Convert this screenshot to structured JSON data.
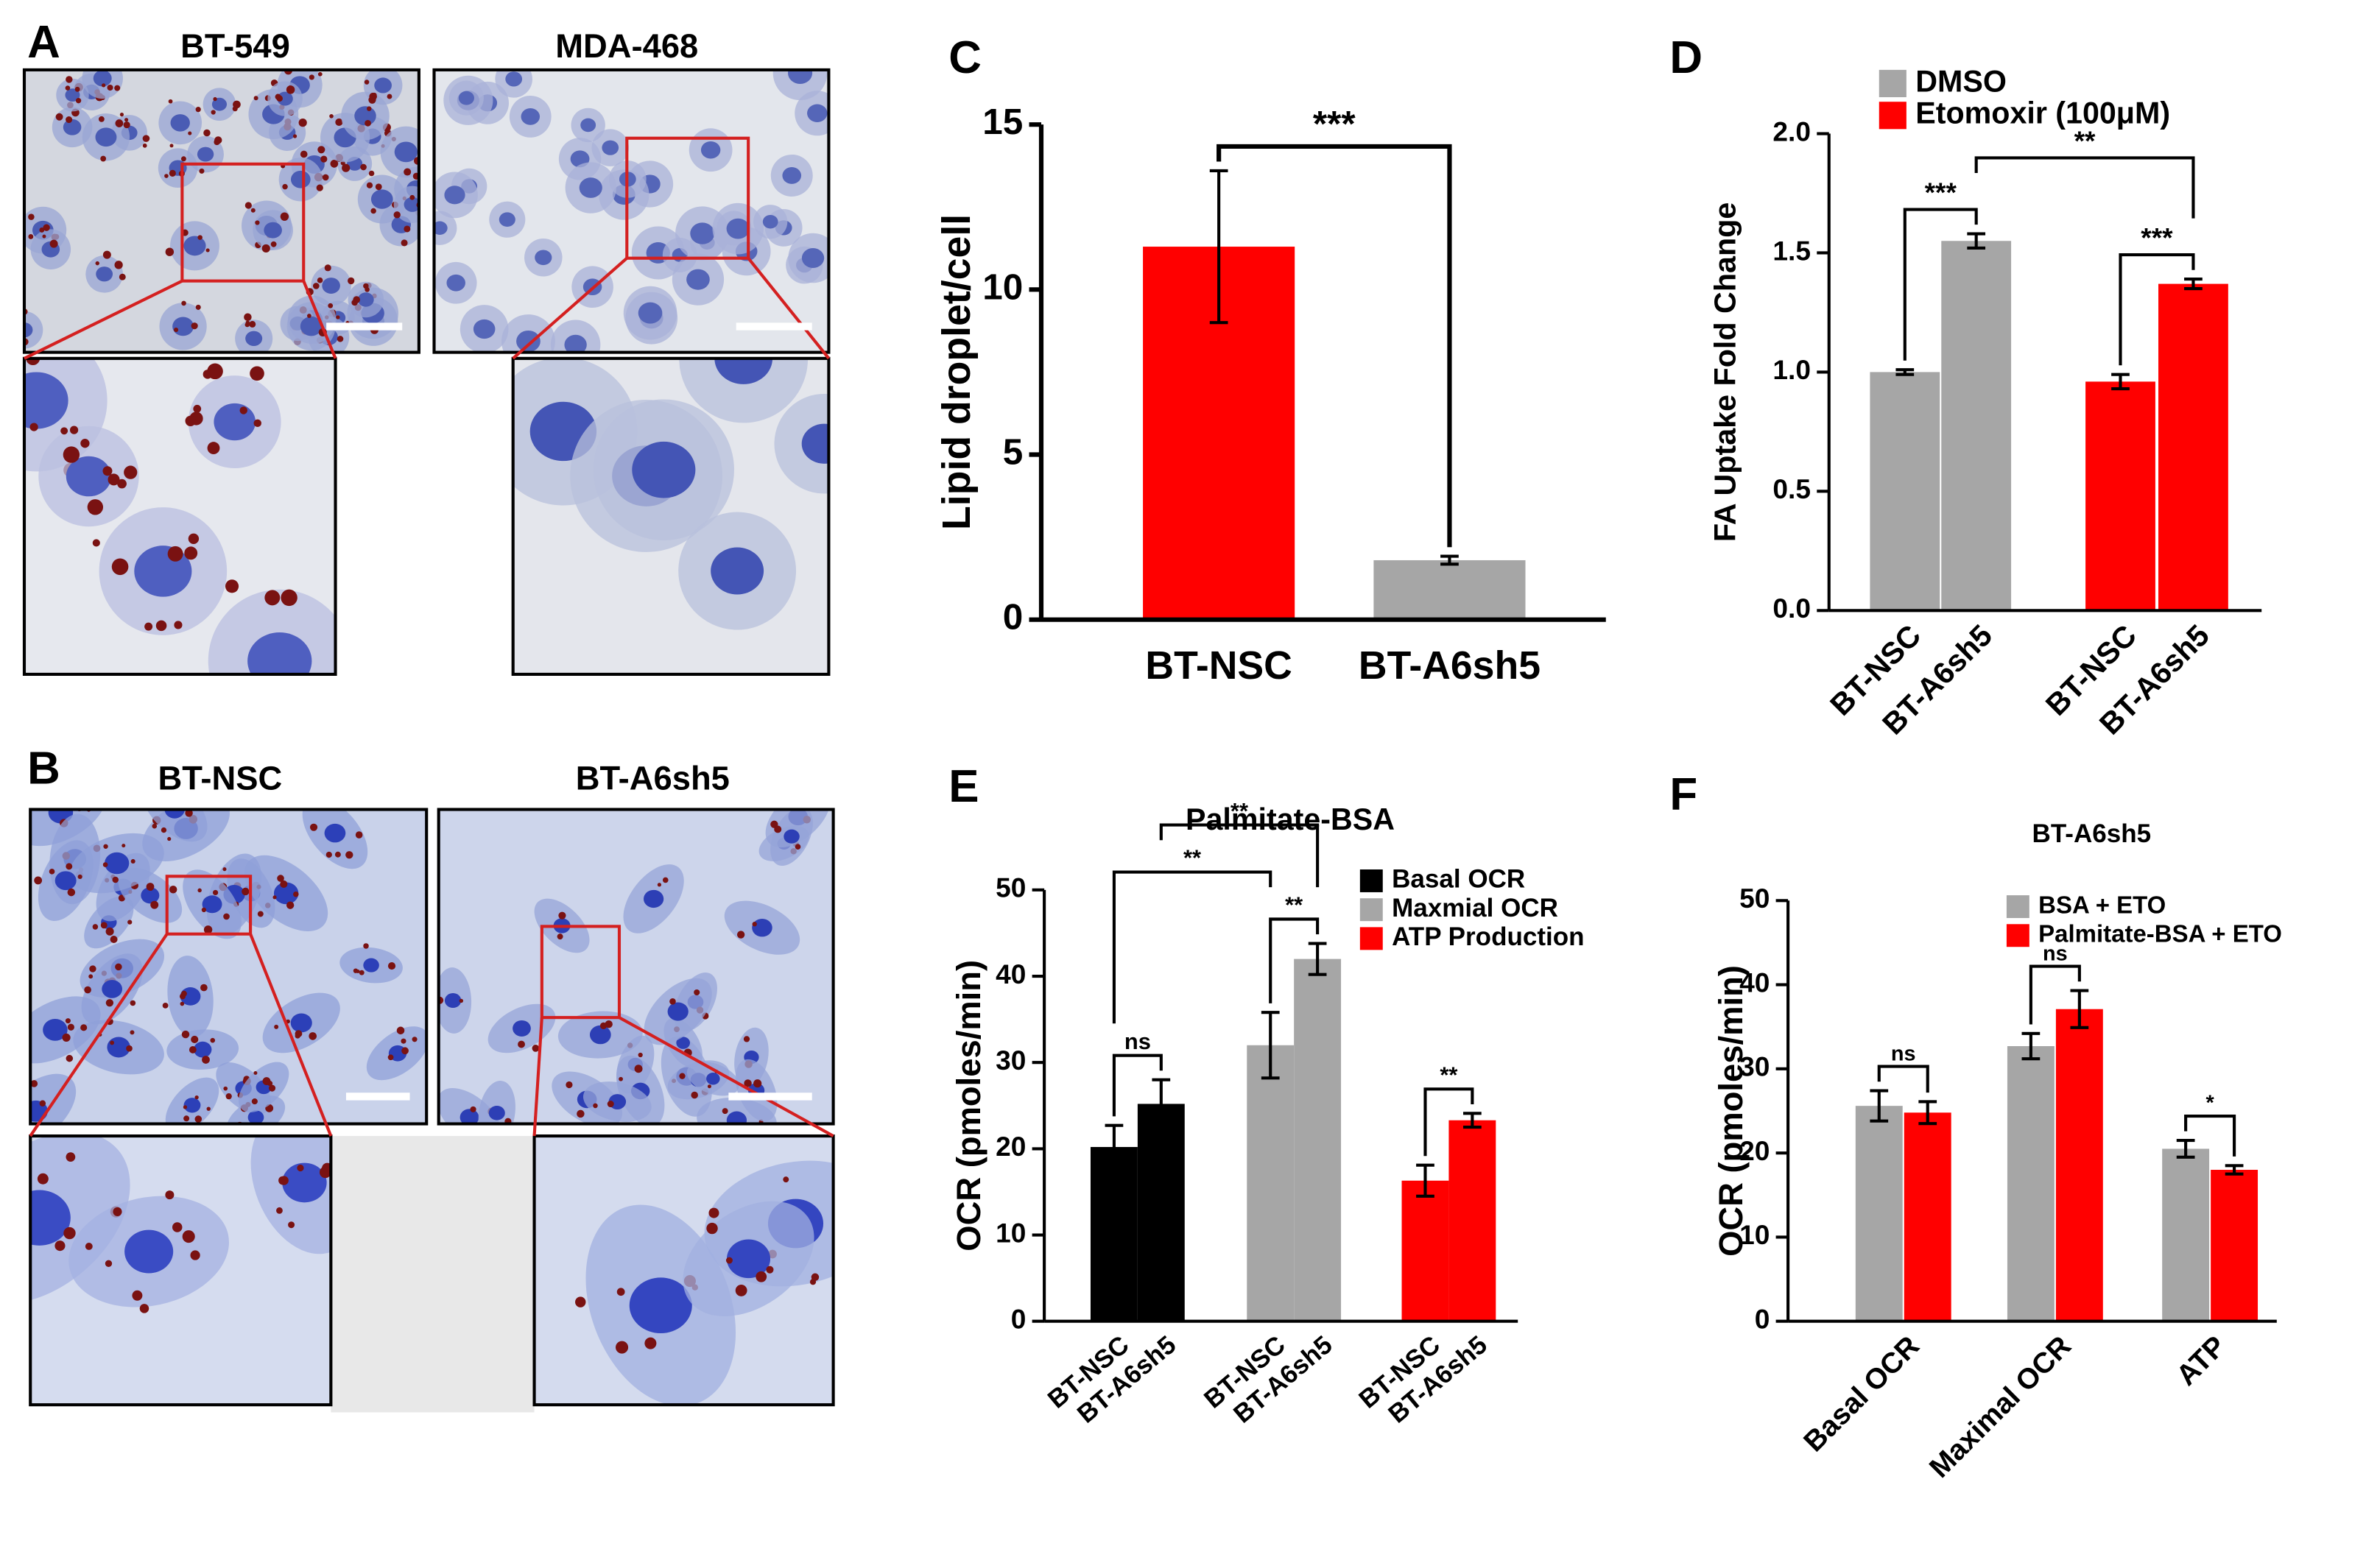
{
  "figure": {
    "panels": [
      {
        "letter": "A",
        "labels": [
          "BT-549",
          "MDA-468"
        ]
      },
      {
        "letter": "B",
        "labels": [
          "BT-NSC",
          "BT-A6sh5"
        ]
      }
    ]
  },
  "chart_data": [
    {
      "type": "bar",
      "panel": "C",
      "ylabel": "Lipid droplet/cell",
      "categories": [
        "BT-NSC",
        "BT-A6sh5"
      ],
      "values": [
        11.3,
        1.8
      ],
      "errors": [
        2.3,
        0.12
      ],
      "colors": [
        "#ff0000",
        "#a6a6a6"
      ],
      "ylim": [
        0,
        15
      ],
      "yticks": [
        0,
        5,
        10,
        15
      ],
      "annotations": [
        {
          "text": "***",
          "bars": [
            0,
            1
          ]
        }
      ]
    },
    {
      "type": "bar",
      "panel": "D",
      "ylabel": "FA Uptake Fold Change",
      "categories": [
        "BT-NSC",
        "BT-A6sh5",
        "BT-NSC",
        "BT-A6sh5"
      ],
      "series": [
        {
          "name": "DMSO",
          "color": "#a6a6a6",
          "values": [
            1.0,
            1.55,
            null,
            null
          ],
          "errors": [
            0.01,
            0.03,
            null,
            null
          ]
        },
        {
          "name": "Etomoxir (100μM)",
          "color": "#ff0000",
          "values": [
            null,
            null,
            0.96,
            1.37
          ],
          "errors": [
            null,
            null,
            0.03,
            0.02
          ]
        }
      ],
      "ylim": [
        0,
        2
      ],
      "yticks": [
        {
          "value": 0,
          "label": "0.0"
        },
        0.5,
        {
          "value": 1,
          "label": "1.0"
        },
        1.5,
        {
          "value": 2,
          "label": "2.0"
        }
      ],
      "annotations": [
        {
          "text": "***",
          "bars": [
            0,
            1
          ]
        },
        {
          "text": "***",
          "bars": [
            2,
            3
          ]
        },
        {
          "text": "**",
          "bars": [
            1,
            3
          ]
        }
      ]
    },
    {
      "type": "bar",
      "panel": "E",
      "title": "Palmitate-BSA",
      "ylabel": "OCR (pmoles/min)",
      "categories": [
        "BT-NSC",
        "BT-A6sh5",
        "BT-NSC",
        "BT-A6sh5",
        "BT-NSC",
        "BT-A6sh5"
      ],
      "series": [
        {
          "name": "Basal OCR",
          "color": "#000000",
          "values": [
            20.2,
            25.2,
            null,
            null,
            null,
            null
          ],
          "errors": [
            2.5,
            2.8,
            null,
            null,
            null,
            null
          ]
        },
        {
          "name": "Maxmial OCR",
          "color": "#a6a6a6",
          "values": [
            null,
            null,
            32,
            42,
            null,
            null
          ],
          "errors": [
            null,
            null,
            3.8,
            1.8,
            null,
            null
          ]
        },
        {
          "name": "ATP Production",
          "color": "#ff0000",
          "values": [
            null,
            null,
            null,
            null,
            16.3,
            23.3
          ],
          "errors": [
            null,
            null,
            null,
            null,
            1.8,
            0.8
          ]
        }
      ],
      "ylim": [
        0,
        50
      ],
      "yticks": [
        0,
        10,
        20,
        30,
        40,
        50
      ],
      "annotations": [
        {
          "text": "ns",
          "bars": [
            0,
            1
          ]
        },
        {
          "text": "**",
          "bars": [
            4,
            5
          ]
        },
        {
          "text": "**",
          "bars": [
            2,
            3
          ]
        },
        {
          "text": "**",
          "bars": [
            0,
            2
          ]
        },
        {
          "text": "**",
          "bars": [
            1,
            3
          ]
        }
      ]
    },
    {
      "type": "bar",
      "panel": "F",
      "title": "BT-A6sh5",
      "ylabel": "OCR (pmoles/min)",
      "categories": [
        "Basal OCR",
        "Maximal OCR",
        "ATP"
      ],
      "series": [
        {
          "name": "BSA + ETO",
          "color": "#a6a6a6",
          "values": [
            25.6,
            32.7,
            20.5
          ],
          "errors": [
            1.8,
            1.5,
            1.0
          ]
        },
        {
          "name": "Palmitate-BSA + ETO",
          "color": "#ff0000",
          "values": [
            24.8,
            37.1,
            18
          ],
          "errors": [
            1.3,
            2.2,
            0.5
          ]
        }
      ],
      "ylim": [
        0,
        50
      ],
      "yticks": [
        0,
        10,
        20,
        30,
        40,
        50
      ],
      "annotations": [
        {
          "text": "ns",
          "bars": [
            0,
            1
          ]
        },
        {
          "text": "ns",
          "bars": [
            2,
            3
          ]
        },
        {
          "text": "*",
          "bars": [
            4,
            5
          ]
        }
      ]
    }
  ]
}
